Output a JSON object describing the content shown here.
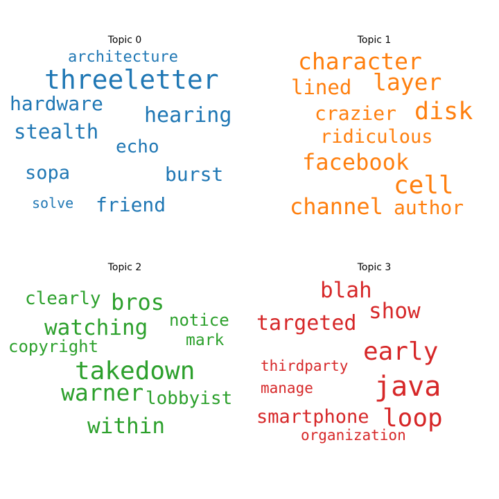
{
  "colors": {
    "topic0": "#1f77b4",
    "topic1": "#ff7f0e",
    "topic2": "#2ca02c",
    "topic3": "#d62728"
  },
  "chart_data": [
    {
      "type": "wordcloud",
      "title": "Topic 0",
      "color": "#1f77b4",
      "words": [
        {
          "text": "architecture",
          "weight": 22
        },
        {
          "text": "threeletter",
          "weight": 38
        },
        {
          "text": "hardware",
          "weight": 28
        },
        {
          "text": "hearing",
          "weight": 30
        },
        {
          "text": "stealth",
          "weight": 29
        },
        {
          "text": "echo",
          "weight": 26
        },
        {
          "text": "sopa",
          "weight": 27
        },
        {
          "text": "burst",
          "weight": 28
        },
        {
          "text": "solve",
          "weight": 20
        },
        {
          "text": "friend",
          "weight": 28
        }
      ]
    },
    {
      "type": "wordcloud",
      "title": "Topic 1",
      "color": "#ff7f0e",
      "words": [
        {
          "text": "character",
          "weight": 33
        },
        {
          "text": "layer",
          "weight": 33
        },
        {
          "text": "lined",
          "weight": 29
        },
        {
          "text": "crazier",
          "weight": 28
        },
        {
          "text": "disk",
          "weight": 35
        },
        {
          "text": "ridiculous",
          "weight": 27
        },
        {
          "text": "facebook",
          "weight": 32
        },
        {
          "text": "cell",
          "weight": 36
        },
        {
          "text": "channel",
          "weight": 32
        },
        {
          "text": "author",
          "weight": 28
        }
      ]
    },
    {
      "type": "wordcloud",
      "title": "Topic 2",
      "color": "#2ca02c",
      "words": [
        {
          "text": "clearly",
          "weight": 26
        },
        {
          "text": "bros",
          "weight": 32
        },
        {
          "text": "watching",
          "weight": 31
        },
        {
          "text": "notice",
          "weight": 24
        },
        {
          "text": "copyright",
          "weight": 24
        },
        {
          "text": "mark",
          "weight": 23
        },
        {
          "text": "takedown",
          "weight": 36
        },
        {
          "text": "warner",
          "weight": 33
        },
        {
          "text": "lobbyist",
          "weight": 26
        },
        {
          "text": "within",
          "weight": 31
        }
      ]
    },
    {
      "type": "wordcloud",
      "title": "Topic 3",
      "color": "#d62728",
      "words": [
        {
          "text": "blah",
          "weight": 31
        },
        {
          "text": "show",
          "weight": 31
        },
        {
          "text": "targeted",
          "weight": 30
        },
        {
          "text": "early",
          "weight": 36
        },
        {
          "text": "thirdparty",
          "weight": 21
        },
        {
          "text": "manage",
          "weight": 21
        },
        {
          "text": "java",
          "weight": 40
        },
        {
          "text": "smartphone",
          "weight": 27
        },
        {
          "text": "loop",
          "weight": 36
        },
        {
          "text": "organization",
          "weight": 21
        }
      ]
    }
  ]
}
